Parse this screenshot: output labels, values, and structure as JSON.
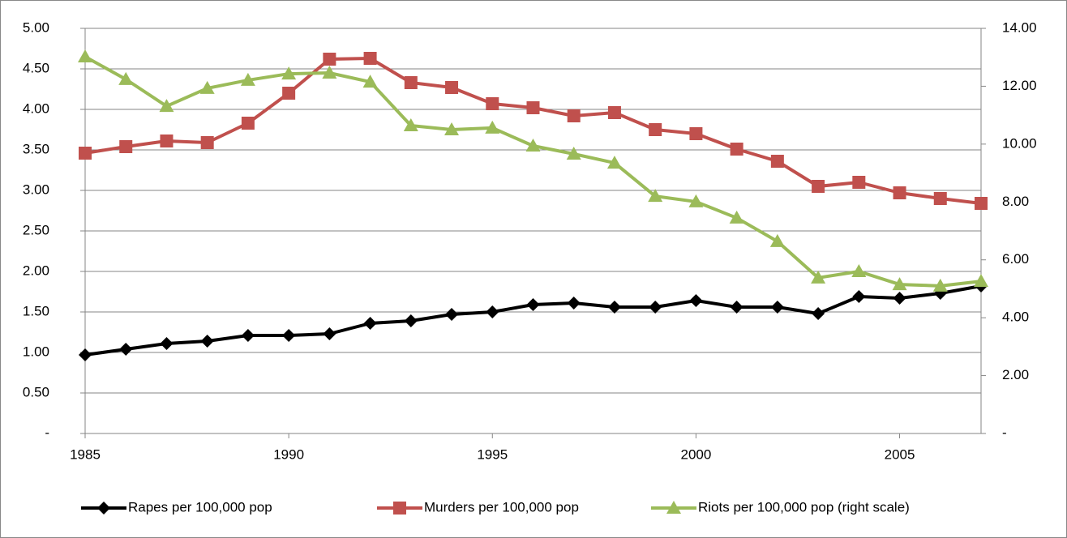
{
  "chart_data": {
    "type": "line",
    "x": [
      1985,
      1986,
      1987,
      1988,
      1989,
      1990,
      1991,
      1992,
      1993,
      1994,
      1995,
      1996,
      1997,
      1998,
      1999,
      2000,
      2001,
      2002,
      2003,
      2004,
      2005,
      2006,
      2007
    ],
    "xlim": [
      1985,
      2007
    ],
    "xticks": [
      1985,
      1990,
      1995,
      2000,
      2005
    ],
    "ylim": [
      0,
      5
    ],
    "yticks": [
      {
        "value": 0,
        "label": "-"
      },
      {
        "value": 0.5,
        "label": "0.50"
      },
      {
        "value": 1,
        "label": "1.00"
      },
      {
        "value": 1.5,
        "label": "1.50"
      },
      {
        "value": 2,
        "label": "2.00"
      },
      {
        "value": 2.5,
        "label": "2.50"
      },
      {
        "value": 3,
        "label": "3.00"
      },
      {
        "value": 3.5,
        "label": "3.50"
      },
      {
        "value": 4,
        "label": "4.00"
      },
      {
        "value": 4.5,
        "label": "4.50"
      },
      {
        "value": 5,
        "label": "5.00"
      }
    ],
    "y2lim": [
      0,
      14
    ],
    "y2ticks": [
      {
        "value": 0,
        "label": "-"
      },
      {
        "value": 2,
        "label": "2.00"
      },
      {
        "value": 4,
        "label": "4.00"
      },
      {
        "value": 6,
        "label": "6.00"
      },
      {
        "value": 8,
        "label": "8.00"
      },
      {
        "value": 10,
        "label": "10.00"
      },
      {
        "value": 12,
        "label": "12.00"
      },
      {
        "value": 14,
        "label": "14.00"
      }
    ],
    "grid": true,
    "legend": "bottom",
    "series": [
      {
        "name": "Rapes per 100,000 pop",
        "color": "#000000",
        "marker": "diamond",
        "values": [
          0.97,
          1.04,
          1.11,
          1.14,
          1.21,
          1.21,
          1.23,
          1.36,
          1.39,
          1.47,
          1.5,
          1.59,
          1.61,
          1.56,
          1.56,
          1.64,
          1.56,
          1.56,
          1.48,
          1.69,
          1.67,
          1.73,
          1.82
        ]
      },
      {
        "name": "Murders per 100,000 pop",
        "color": "#c0504d",
        "marker": "square",
        "values": [
          3.46,
          3.54,
          3.61,
          3.59,
          3.83,
          4.2,
          4.62,
          4.63,
          4.33,
          4.27,
          4.07,
          4.02,
          3.92,
          3.96,
          3.75,
          3.7,
          3.51,
          3.36,
          3.05,
          3.1,
          2.97,
          2.9,
          2.84
        ]
      },
      {
        "name": "Riots per 100,000 pop (right scale)",
        "color": "#9bbb59",
        "marker": "triangle",
        "axis": "y2",
        "values": [
          13.02,
          12.24,
          11.31,
          11.93,
          12.21,
          12.43,
          12.46,
          12.15,
          10.64,
          10.5,
          10.56,
          9.94,
          9.66,
          9.35,
          8.2,
          8.01,
          7.45,
          6.64,
          5.38,
          5.6,
          5.15,
          5.1,
          5.26
        ]
      }
    ]
  }
}
